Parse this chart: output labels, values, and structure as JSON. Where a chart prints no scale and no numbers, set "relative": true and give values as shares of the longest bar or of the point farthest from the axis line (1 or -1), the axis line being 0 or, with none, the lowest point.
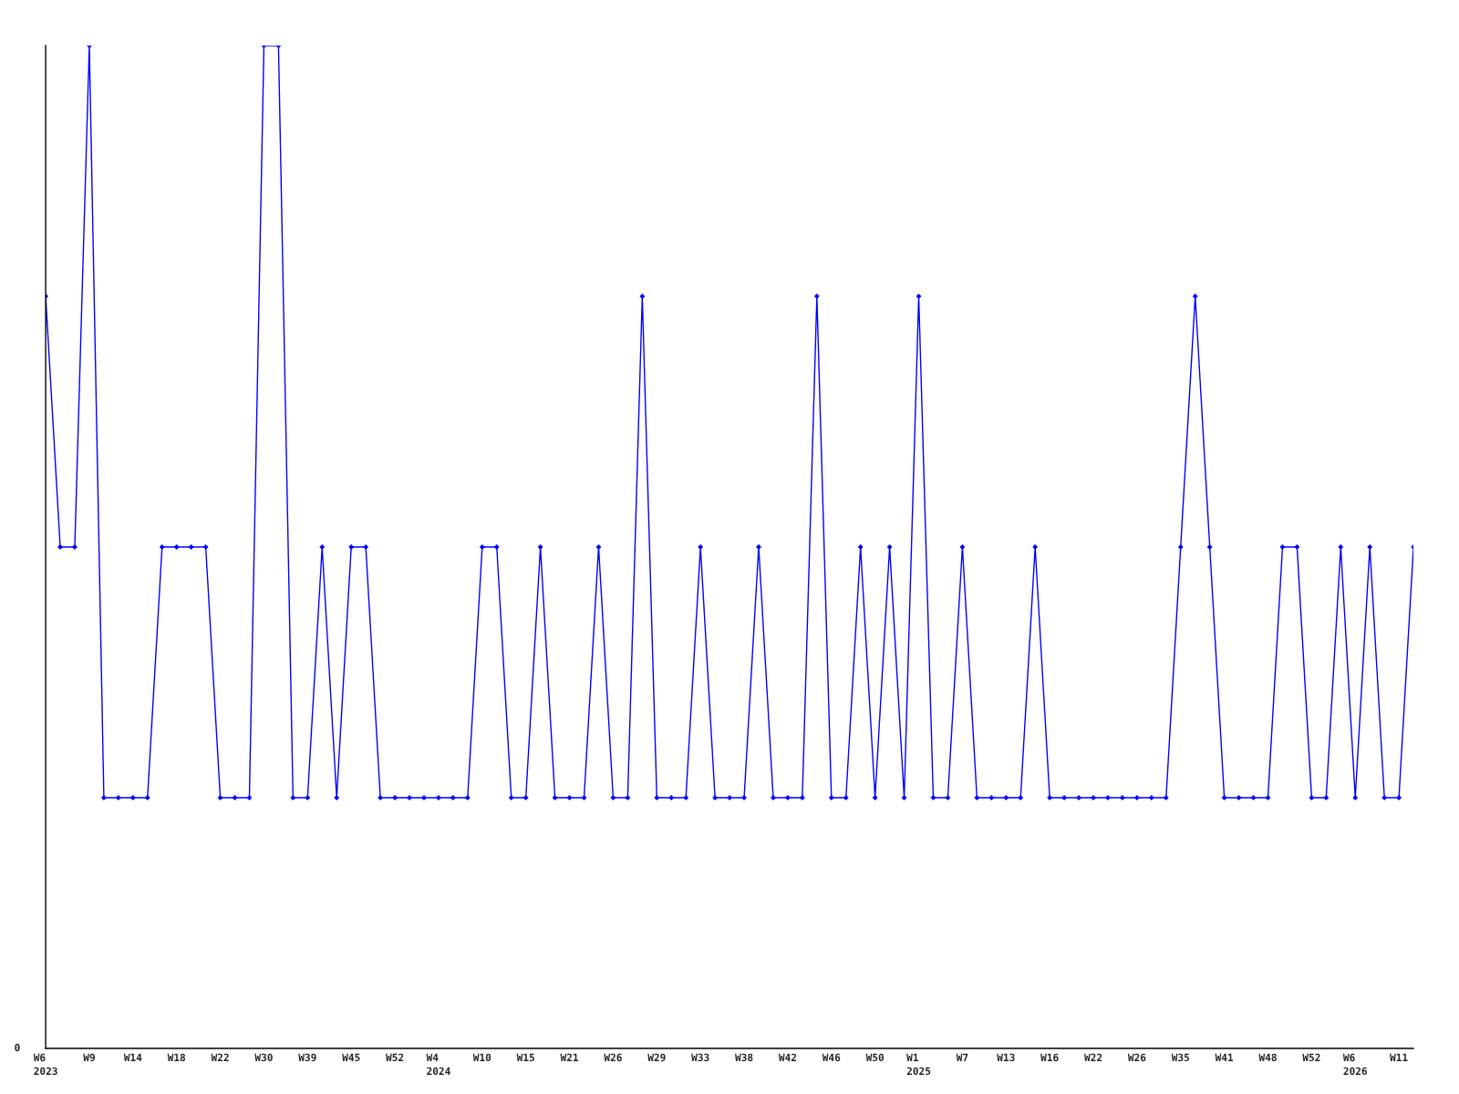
{
  "chart_data": {
    "type": "line",
    "relative": true,
    "categories": [
      "W6\n2023",
      null,
      null,
      "W9",
      null,
      null,
      "W14",
      null,
      null,
      "W18",
      null,
      null,
      "W22",
      null,
      null,
      "W30",
      null,
      null,
      "W39",
      null,
      null,
      "W45",
      null,
      null,
      "W52",
      null,
      null,
      "W4\n2024",
      null,
      null,
      "W10",
      null,
      null,
      "W15",
      null,
      null,
      "W21",
      null,
      null,
      "W26",
      null,
      null,
      "W29",
      null,
      null,
      "W33",
      null,
      null,
      "W38",
      null,
      null,
      "W42",
      null,
      null,
      "W46",
      null,
      null,
      "W50",
      null,
      null,
      "W1\n2025",
      null,
      null,
      "W7",
      null,
      null,
      "W13",
      null,
      null,
      "W16",
      null,
      null,
      "W22",
      null,
      null,
      "W26",
      null,
      null,
      "W35",
      null,
      null,
      "W41",
      null,
      null,
      "W48",
      null,
      null,
      "W52",
      null,
      null,
      "W6\n2026",
      null,
      null,
      "W11",
      null
    ],
    "series": [
      {
        "color": "#0000ff",
        "values": [
          0.75,
          0.5,
          0.5,
          1,
          0.25,
          0.25,
          0.25,
          0.25,
          0.5,
          0.5,
          0.5,
          0.5,
          0.25,
          0.25,
          0.25,
          1,
          1,
          0.25,
          0.25,
          0.5,
          0.25,
          0.5,
          0.5,
          0.25,
          0.25,
          0.25,
          0.25,
          0.25,
          0.25,
          0.25,
          0.5,
          0.5,
          0.25,
          0.25,
          0.5,
          0.25,
          0.25,
          0.25,
          0.5,
          0.25,
          0.25,
          0.75,
          0.25,
          0.25,
          0.25,
          0.5,
          0.25,
          0.25,
          0.25,
          0.5,
          0.25,
          0.25,
          0.25,
          0.75,
          0.25,
          0.25,
          0.5,
          0.25,
          0.5,
          0.25,
          0.75,
          0.25,
          0.25,
          0.5,
          0.25,
          0.25,
          0.25,
          0.25,
          0.5,
          0.25,
          0.25,
          0.25,
          0.25,
          0.25,
          0.25,
          0.25,
          0.25,
          0.25,
          0.5,
          0.75,
          0.5,
          0.25,
          0.25,
          0.25,
          0.25,
          0.5,
          0.5,
          0.25,
          0.25,
          0.5,
          0.25,
          0.5,
          0.25,
          0.25,
          0.5
        ]
      }
    ],
    "annotations": [
      "0"
    ],
    "marker": "diamond",
    "grid": false,
    "legend": false
  }
}
